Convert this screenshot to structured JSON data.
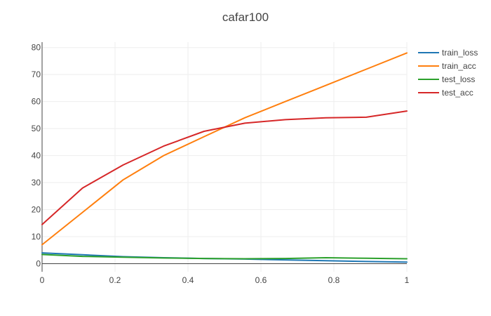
{
  "chart_data": {
    "type": "line",
    "title": "cafar100",
    "xlabel": "",
    "ylabel": "",
    "xlim": [
      0,
      1
    ],
    "ylim": [
      -3,
      82
    ],
    "x_ticks": [
      "0",
      "0.2",
      "0.4",
      "0.6",
      "0.8",
      "1"
    ],
    "y_ticks": [
      "0",
      "10",
      "20",
      "30",
      "40",
      "50",
      "60",
      "70",
      "80"
    ],
    "grid": true,
    "legend_position": "top-right",
    "x": [
      0,
      0.111,
      0.222,
      0.333,
      0.444,
      0.556,
      0.667,
      0.778,
      0.889,
      1
    ],
    "series": [
      {
        "name": "train_loss",
        "color": "#1f77b4",
        "values": [
          4.0,
          3.3,
          2.6,
          2.2,
          1.9,
          1.7,
          1.4,
          1.1,
          0.8,
          0.6
        ]
      },
      {
        "name": "train_acc",
        "color": "#ff7f0e",
        "values": [
          7.0,
          19.0,
          31.0,
          40.0,
          47.0,
          54.0,
          60.0,
          66.0,
          72.0,
          78.0
        ]
      },
      {
        "name": "test_loss",
        "color": "#2ca02c",
        "values": [
          3.4,
          2.7,
          2.4,
          2.1,
          1.9,
          1.8,
          1.9,
          2.2,
          2.0,
          1.8
        ]
      },
      {
        "name": "test_acc",
        "color": "#d62728",
        "values": [
          14.5,
          28.0,
          36.5,
          43.5,
          49.0,
          52.0,
          53.3,
          54.0,
          54.2,
          56.5
        ]
      }
    ]
  }
}
